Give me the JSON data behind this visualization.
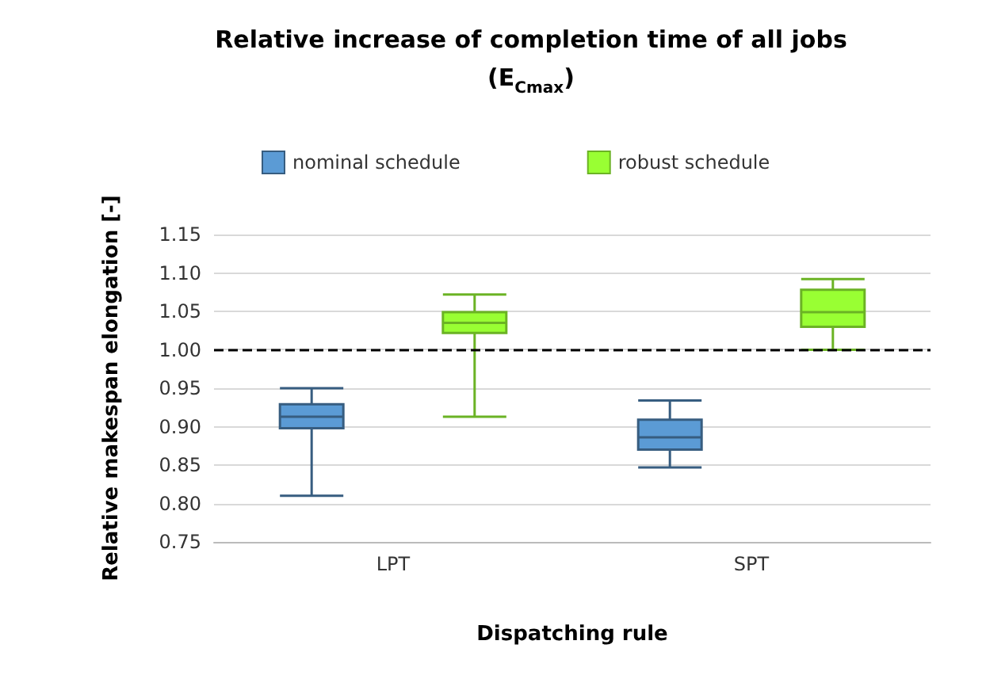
{
  "chart_data": {
    "type": "box",
    "title": "Relative increase of completion time of all jobs (E$_{Cmax}$)",
    "xlabel": "Dispatching rule",
    "ylabel": "Relative makespan elongation [-]",
    "categories": [
      "LPT",
      "SPT"
    ],
    "series": [
      {
        "name": "nominal schedule",
        "color": "#5b9bd5",
        "boxes": [
          {
            "low": 0.81,
            "q1": 0.898,
            "median": 0.913,
            "q3": 0.929,
            "high": 0.95
          },
          {
            "low": 0.847,
            "q1": 0.87,
            "median": 0.886,
            "q3": 0.909,
            "high": 0.934
          }
        ]
      },
      {
        "name": "robust schedule",
        "color": "#99ff33",
        "boxes": [
          {
            "low": 0.913,
            "q1": 1.022,
            "median": 1.035,
            "q3": 1.049,
            "high": 1.072
          },
          {
            "low": 1.0,
            "q1": 1.03,
            "median": 1.049,
            "q3": 1.078,
            "high": 1.092
          }
        ]
      }
    ],
    "ylim": [
      0.75,
      1.15
    ],
    "yticks": [
      0.75,
      {
        "value": 0.8,
        "label": "0.80"
      },
      0.85,
      {
        "value": 0.9,
        "label": "0.90"
      },
      0.95,
      {
        "value": 1.0,
        "label": "1.00"
      },
      1.05,
      {
        "value": 1.1,
        "label": "1.10"
      },
      1.15
    ],
    "ref_lines": [
      {
        "axis": "y",
        "value": 1.0,
        "color": "#000000",
        "line_style": "dashed"
      }
    ],
    "grid": "y",
    "legend": "top"
  }
}
